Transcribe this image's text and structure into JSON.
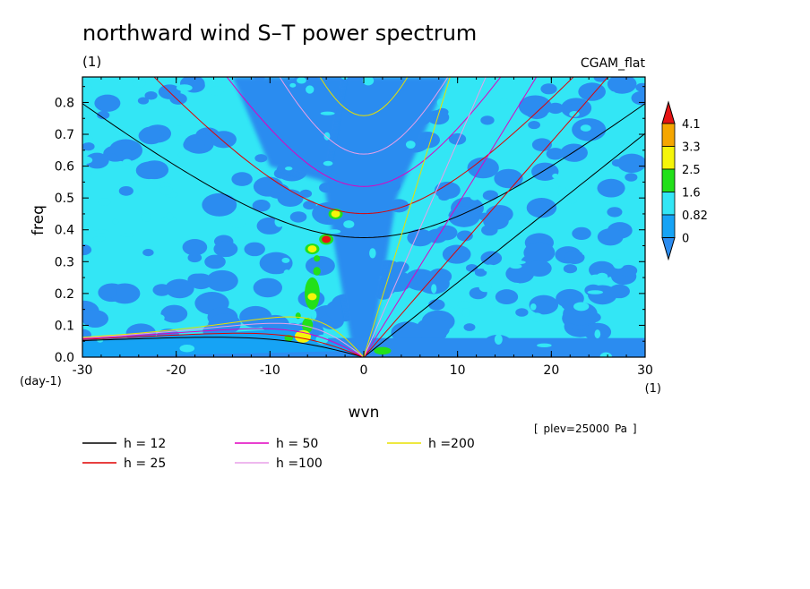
{
  "chart_data": {
    "type": "heatmap",
    "title": "northward wind S–T power spectrum",
    "subtitle": "(1)",
    "model": "CGAM_flat",
    "xlabel": "wvn",
    "ylabel": "freq",
    "x_unit": "(1)",
    "y_unit": "(day-1)",
    "note": "[ plev=25000 Pa ]",
    "xlim": [
      -30,
      30
    ],
    "ylim": [
      0,
      0.88
    ],
    "xticks": [
      "-30",
      "-20",
      "-10",
      "0",
      "10",
      "20",
      "30"
    ],
    "yticks": [
      "0.0",
      "0.1",
      "0.2",
      "0.3",
      "0.4",
      "0.5",
      "0.6",
      "0.7",
      "0.8"
    ],
    "colorbar": {
      "levels": [
        "0",
        "0.82",
        "1.6",
        "2.5",
        "3.3",
        "4.1"
      ],
      "colors": [
        "#2b8cf0",
        "#16a3f5",
        "#33e6f5",
        "#22e01a",
        "#f5f50a",
        "#f5a600",
        "#e61414"
      ]
    },
    "hotspots": [
      {
        "x": -6.5,
        "y": 0.065,
        "level": "2.5-3.3"
      },
      {
        "x": -4,
        "y": 0.37,
        "level": ">4.1"
      },
      {
        "x": -3,
        "y": 0.45,
        "level": "2.5-3.3"
      },
      {
        "x": -5.5,
        "y": 0.34,
        "level": "2.5-3.3"
      },
      {
        "x": -5.5,
        "y": 0.19,
        "level": "2.5-3.3"
      }
    ],
    "dispersion_curves": [
      {
        "name": "h = 12",
        "h": 12,
        "color": "#000000"
      },
      {
        "name": "h = 25",
        "h": 25,
        "color": "#e00000"
      },
      {
        "name": "h = 50",
        "h": 50,
        "color": "#e000c0"
      },
      {
        "name": "h =100",
        "h": 100,
        "color": "#e8a0e8"
      },
      {
        "name": "h =200",
        "h": 200,
        "color": "#e8e000"
      }
    ]
  }
}
